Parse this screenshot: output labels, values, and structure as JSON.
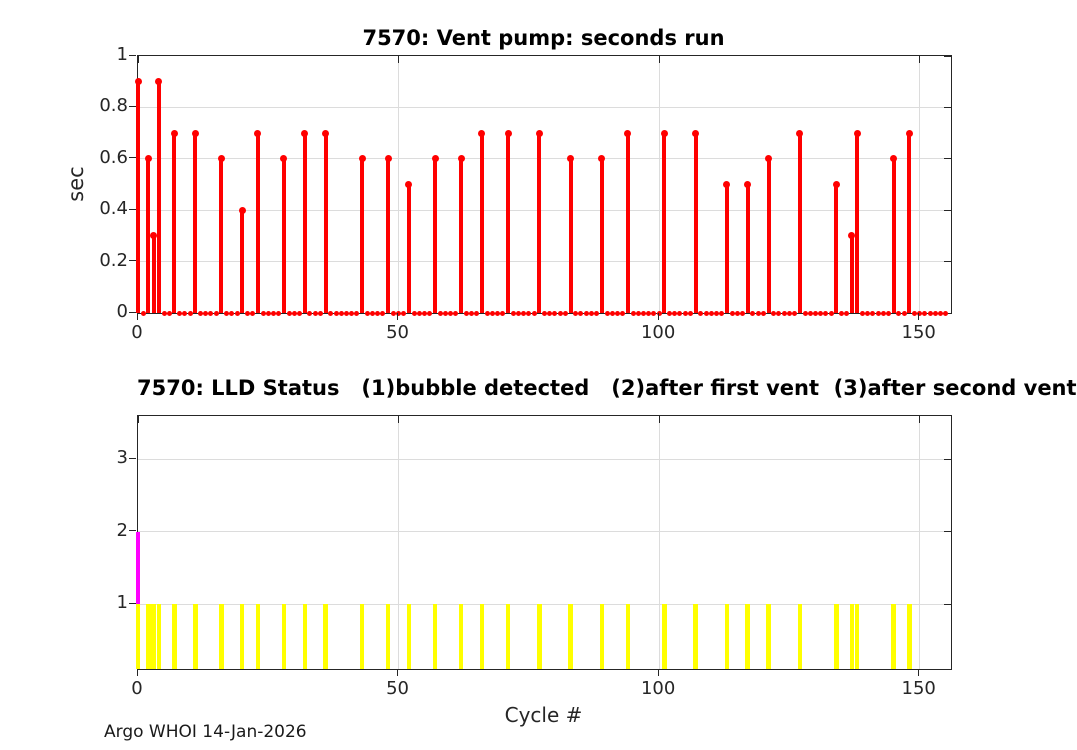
{
  "figure": {
    "footer_text": "Argo WHOI 14-Jan-2026",
    "background": "#ffffff",
    "axis_color": "#262626",
    "grid_color": "#dcdcdc"
  },
  "chart_data": [
    {
      "type": "stem",
      "title": "7570: Vent pump: seconds run",
      "xlabel": "",
      "ylabel": "sec",
      "xlim": [
        0,
        156
      ],
      "ylim": [
        0,
        1
      ],
      "xticks": [
        0,
        50,
        100,
        150
      ],
      "yticks": [
        0,
        0.2,
        0.4,
        0.6,
        0.8,
        1
      ],
      "grid": true,
      "legend": "none",
      "stem_color": "#ff0000",
      "marker": "filled-circle",
      "zero_marker_cycle_range": [
        0,
        155
      ],
      "stems": [
        [
          0,
          0.9
        ],
        [
          2,
          0.6
        ],
        [
          3,
          0.3
        ],
        [
          4,
          0.9
        ],
        [
          7,
          0.7
        ],
        [
          11,
          0.7
        ],
        [
          16,
          0.6
        ],
        [
          20,
          0.4
        ],
        [
          23,
          0.7
        ],
        [
          28,
          0.6
        ],
        [
          32,
          0.7
        ],
        [
          36,
          0.7
        ],
        [
          43,
          0.6
        ],
        [
          48,
          0.6
        ],
        [
          52,
          0.5
        ],
        [
          57,
          0.6
        ],
        [
          62,
          0.6
        ],
        [
          66,
          0.7
        ],
        [
          71,
          0.7
        ],
        [
          77,
          0.7
        ],
        [
          83,
          0.6
        ],
        [
          89,
          0.6
        ],
        [
          94,
          0.7
        ],
        [
          101,
          0.7
        ],
        [
          107,
          0.7
        ],
        [
          113,
          0.5
        ],
        [
          117,
          0.5
        ],
        [
          121,
          0.6
        ],
        [
          127,
          0.7
        ],
        [
          134,
          0.5
        ],
        [
          137,
          0.3
        ],
        [
          138,
          0.7
        ],
        [
          145,
          0.6
        ],
        [
          148,
          0.7
        ]
      ]
    },
    {
      "type": "bar",
      "title": "7570: LLD Status   (1)bubble detected   (2)after first vent  (3)after second vent",
      "xlabel": "Cycle #",
      "ylabel": "",
      "xlim": [
        0,
        156
      ],
      "ylim": [
        0.1,
        3.6
      ],
      "xticks": [
        0,
        50,
        100,
        150
      ],
      "yticks": [
        1,
        2,
        3
      ],
      "grid": true,
      "legend": "none",
      "series": [
        {
          "name": "after first vent",
          "status_value": 2,
          "color": "#ff00ff",
          "x": [
            0
          ],
          "value": 2
        },
        {
          "name": "bubble detected",
          "status_value": 1,
          "color": "#ffff00",
          "x": [
            0,
            2,
            3,
            4,
            7,
            11,
            16,
            20,
            23,
            28,
            32,
            36,
            43,
            48,
            52,
            57,
            62,
            66,
            71,
            77,
            83,
            89,
            94,
            101,
            107,
            113,
            117,
            121,
            127,
            134,
            137,
            138,
            145,
            148
          ],
          "value": 1
        }
      ]
    }
  ]
}
